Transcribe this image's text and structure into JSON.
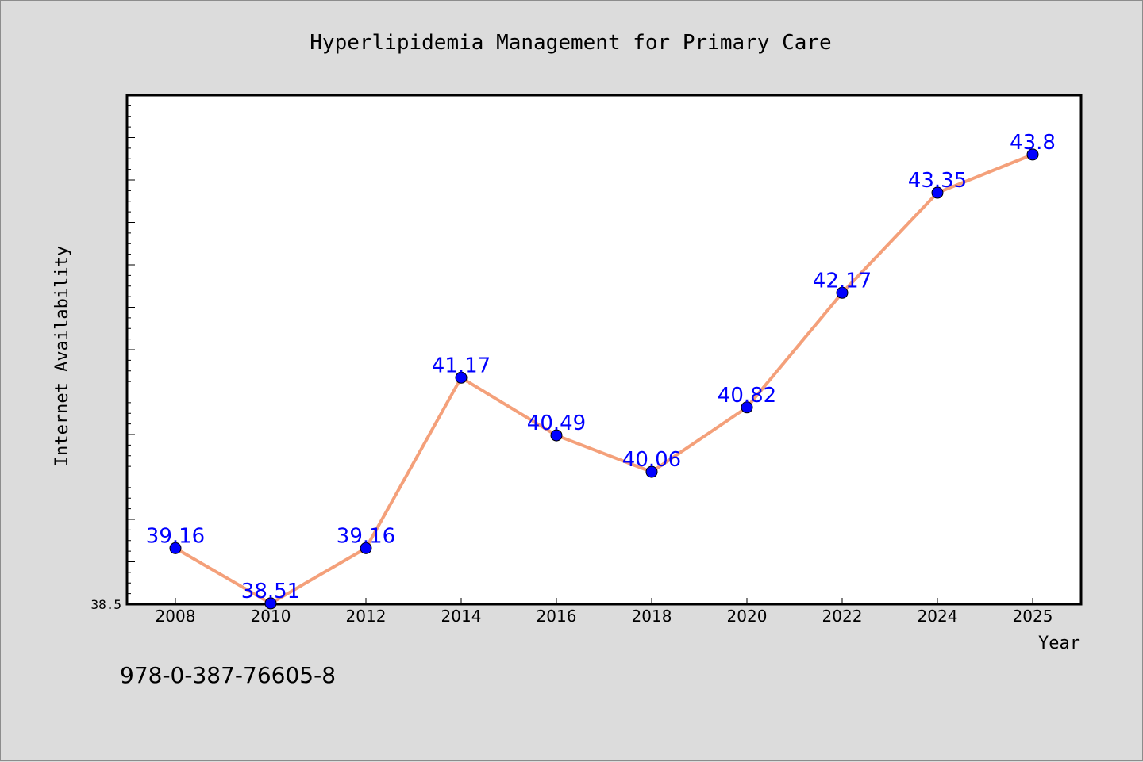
{
  "chart_data": {
    "type": "line",
    "title": "Hyperlipidemia Management for Primary Care",
    "xlabel": "Year",
    "ylabel": "Internet Availability",
    "categories": [
      "2008",
      "2010",
      "2012",
      "2014",
      "2016",
      "2018",
      "2020",
      "2022",
      "2024",
      "2025"
    ],
    "series": [
      {
        "values": [
          39.16,
          38.51,
          39.16,
          41.17,
          40.49,
          40.06,
          40.82,
          42.17,
          43.35,
          43.8
        ],
        "labels": [
          "39.16",
          "38.51",
          "39.16",
          "41.17",
          "40.49",
          "40.06",
          "40.82",
          "42.17",
          "43.35",
          "43.8"
        ]
      }
    ],
    "ylim": [
      38.5,
      44.5
    ],
    "y_tick_label": "38.5",
    "grid": false,
    "colors": {
      "line": "#f4a07a",
      "marker": "#0000ff",
      "label": "#0000ff",
      "background": "#dcdcdc",
      "plot_background": "#ffffff"
    }
  },
  "footer": {
    "code": "978-0-387-76605-8"
  }
}
